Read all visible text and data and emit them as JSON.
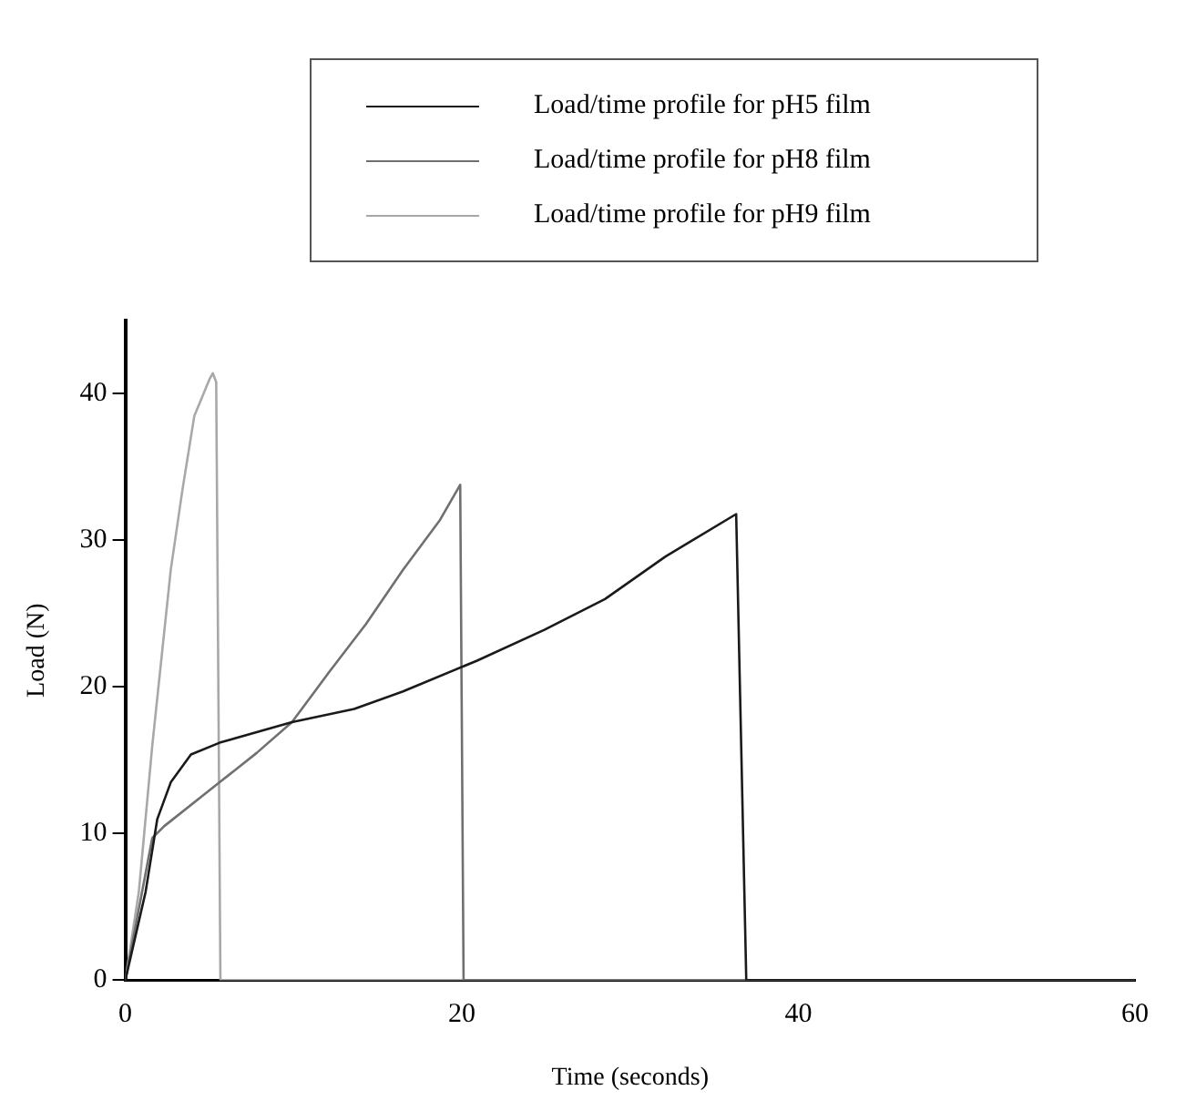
{
  "chart_data": {
    "type": "line",
    "xlabel": "Time (seconds)",
    "ylabel": "Load (N)",
    "xlim": [
      0,
      60
    ],
    "xticks": [
      0,
      20,
      40,
      60
    ],
    "ylim": [
      0,
      45
    ],
    "yticks": [
      0,
      10,
      20,
      30,
      40
    ],
    "grid": false,
    "legend": "top",
    "marker": "none",
    "line_style": "solid",
    "series": [
      {
        "name": "Load/time profile for pH5 film",
        "color": "#1a1a1a",
        "x": [
          0,
          1.2,
          1.9,
          2.7,
          3.9,
          5.6,
          9.9,
          13.6,
          16.5,
          20.9,
          24.9,
          28.5,
          32.1,
          36.3,
          36.9,
          60
        ],
        "values": [
          0,
          6,
          11,
          13.5,
          15.4,
          16.2,
          17.6,
          18.5,
          19.7,
          21.8,
          23.9,
          26,
          28.9,
          31.8,
          0,
          0
        ]
      },
      {
        "name": "Load/time profile for pH8 film",
        "color": "#707070",
        "x": [
          0,
          1.6,
          2.3,
          5.6,
          7.8,
          9.9,
          12.1,
          14.3,
          16.5,
          18.7,
          19.9,
          20.1,
          60
        ],
        "values": [
          0,
          9.7,
          10.5,
          13.5,
          15.5,
          17.6,
          21,
          24.3,
          28,
          31.4,
          33.8,
          0,
          0
        ]
      },
      {
        "name": "Load/time profile for pH9 film",
        "color": "#a8a8a8",
        "x": [
          0,
          0.8,
          1.6,
          2.7,
          3.4,
          4.1,
          5,
          5.2,
          5.4,
          5.65,
          60
        ],
        "values": [
          0,
          6,
          16,
          28,
          33.5,
          38.5,
          41,
          41.4,
          40.8,
          0,
          0
        ]
      }
    ]
  }
}
